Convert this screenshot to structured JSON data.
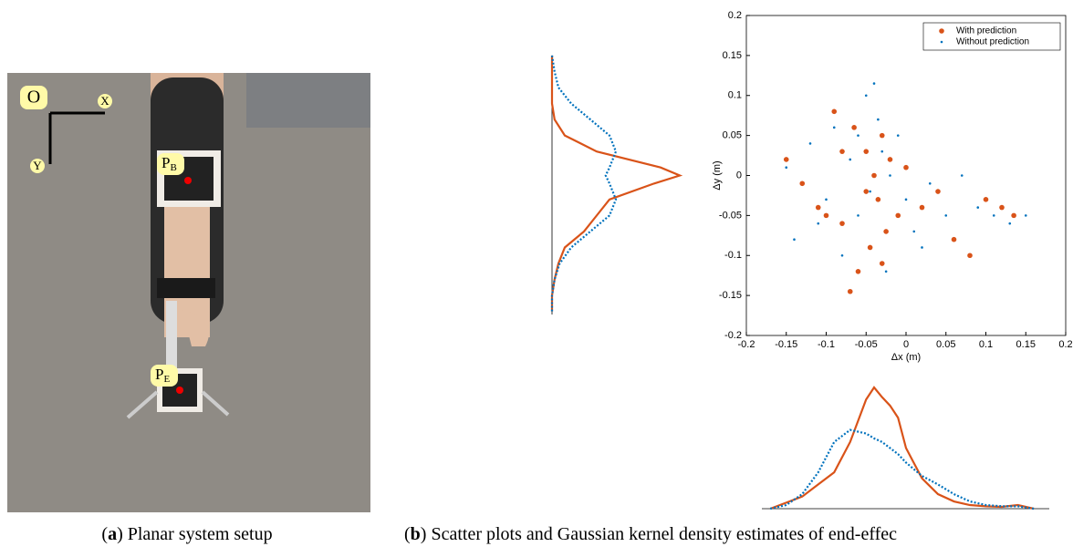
{
  "photo": {
    "origin": "O",
    "x_axis": "X",
    "y_axis": "Y",
    "points": [
      {
        "text": "P",
        "sub": "B"
      },
      {
        "text": "P",
        "sub": "E"
      }
    ]
  },
  "captions": [
    [
      "(",
      "a",
      ") Planar system setup"
    ],
    [
      "(",
      "b",
      ") Scatter plots and Gaussian kernel density estimates of end-effec"
    ]
  ],
  "chart_data": {
    "type": "scatter",
    "xlabel": "Δx (m)",
    "ylabel": "Δy (m)",
    "xlim": [
      -0.2,
      0.2
    ],
    "ylim": [
      -0.2,
      0.2
    ],
    "xticks": [
      -0.2,
      -0.15,
      -0.1,
      -0.05,
      0,
      0.05,
      0.1,
      0.15,
      0.2
    ],
    "yticks": [
      -0.2,
      -0.15,
      -0.1,
      -0.05,
      0,
      0.05,
      0.1,
      0.15,
      0.2
    ],
    "legend": "upper right",
    "series": [
      {
        "name": "With prediction",
        "color": "#d95319",
        "x": [
          -0.15,
          -0.13,
          -0.11,
          -0.09,
          -0.08,
          -0.07,
          -0.06,
          -0.05,
          -0.045,
          -0.04,
          -0.035,
          -0.03,
          -0.025,
          -0.02,
          -0.01,
          0,
          0.02,
          0.04,
          0.06,
          0.08,
          0.1,
          0.12,
          0.135,
          -0.065,
          -0.05,
          -0.03,
          -0.08,
          -0.1
        ],
        "values": [
          0.02,
          -0.01,
          -0.04,
          0.08,
          -0.06,
          -0.145,
          -0.12,
          0.03,
          -0.09,
          0.0,
          -0.03,
          0.05,
          -0.07,
          0.02,
          -0.05,
          0.01,
          -0.04,
          -0.02,
          -0.08,
          -0.1,
          -0.03,
          -0.04,
          -0.05,
          0.06,
          -0.02,
          -0.11,
          0.03,
          -0.05
        ]
      },
      {
        "name": "Without prediction",
        "color": "#0072bd",
        "x": [
          -0.15,
          -0.14,
          -0.12,
          -0.1,
          -0.09,
          -0.08,
          -0.07,
          -0.06,
          -0.05,
          -0.04,
          -0.03,
          -0.025,
          -0.02,
          -0.01,
          0,
          0.01,
          0.03,
          0.05,
          0.07,
          0.09,
          0.11,
          0.13,
          0.15,
          -0.045,
          -0.035,
          -0.06,
          -0.11,
          0.02
        ],
        "values": [
          0.01,
          -0.08,
          0.04,
          -0.03,
          0.06,
          -0.1,
          0.02,
          -0.05,
          0.1,
          0.115,
          0.03,
          -0.12,
          0.0,
          0.05,
          -0.03,
          -0.07,
          -0.01,
          -0.05,
          0.0,
          -0.04,
          -0.05,
          -0.06,
          -0.05,
          -0.02,
          0.07,
          0.05,
          -0.06,
          -0.09
        ]
      }
    ],
    "x_density": {
      "grid": [
        -0.17,
        -0.15,
        -0.13,
        -0.11,
        -0.09,
        -0.07,
        -0.05,
        -0.04,
        -0.03,
        -0.02,
        -0.01,
        0,
        0.02,
        0.04,
        0.06,
        0.08,
        0.1,
        0.12,
        0.14,
        0.16
      ],
      "series": [
        {
          "values": [
            0,
            0.05,
            0.1,
            0.2,
            0.3,
            0.55,
            0.9,
            1.0,
            0.92,
            0.85,
            0.75,
            0.5,
            0.25,
            0.12,
            0.06,
            0.03,
            0.02,
            0.015,
            0.03,
            0
          ]
        },
        {
          "values": [
            0,
            0.03,
            0.12,
            0.3,
            0.55,
            0.65,
            0.62,
            0.58,
            0.55,
            0.5,
            0.45,
            0.38,
            0.27,
            0.2,
            0.12,
            0.06,
            0.03,
            0.02,
            0.02,
            0
          ]
        }
      ]
    },
    "y_density": {
      "grid": [
        0.15,
        0.13,
        0.11,
        0.09,
        0.07,
        0.05,
        0.03,
        0.01,
        0,
        -0.01,
        -0.03,
        -0.05,
        -0.07,
        -0.09,
        -0.11,
        -0.13,
        -0.15,
        -0.17
      ],
      "series": [
        {
          "values": [
            0,
            0,
            0,
            0,
            0.02,
            0.1,
            0.35,
            0.85,
            1.0,
            0.8,
            0.45,
            0.35,
            0.25,
            0.1,
            0.05,
            0.02,
            0,
            0
          ]
        },
        {
          "values": [
            0,
            0.02,
            0.05,
            0.15,
            0.3,
            0.45,
            0.5,
            0.45,
            0.42,
            0.45,
            0.5,
            0.45,
            0.3,
            0.15,
            0.06,
            0.02,
            0,
            0
          ]
        }
      ]
    }
  }
}
